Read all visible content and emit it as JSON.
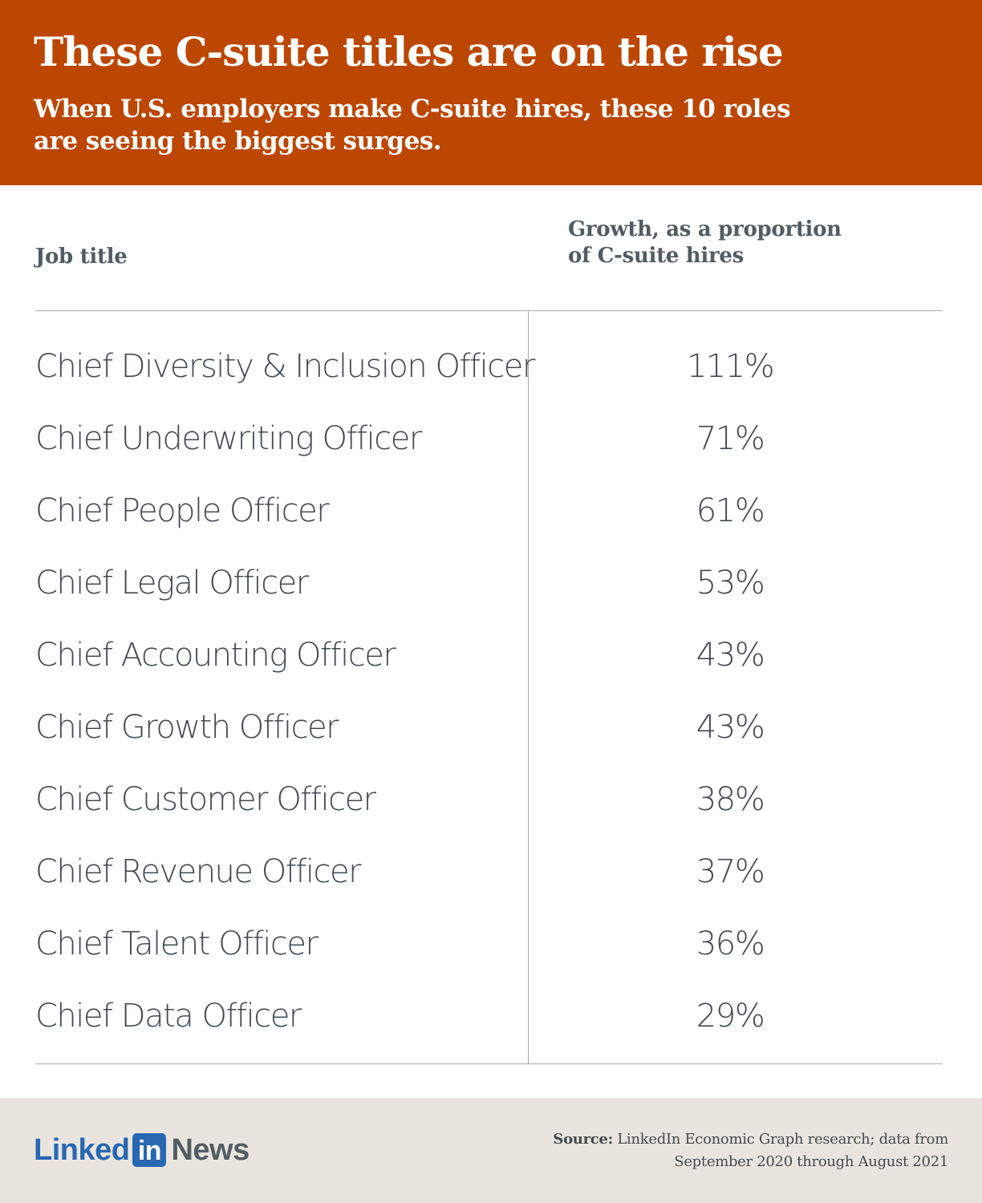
{
  "header": {
    "title": "These C-suite titles are on the rise",
    "subtitle": "When U.S. employers make C-suite hires, these 10 roles are seeing the biggest surges."
  },
  "columns": {
    "job_title": "Job title",
    "growth_line1": "Growth, as a proportion",
    "growth_line2": "of C-suite hires"
  },
  "chart_data": {
    "type": "table",
    "title": "These C-suite titles are on the rise",
    "subtitle": "When U.S. employers make C-suite hires, these 10 roles are seeing the biggest surges.",
    "columns": [
      "Job title",
      "Growth, as a proportion of C-suite hires"
    ],
    "categories": [
      "Chief Diversity & Inclusion Officer",
      "Chief Underwriting Officer",
      "Chief People Officer",
      "Chief Legal Officer",
      "Chief Accounting Officer",
      "Chief Growth Officer",
      "Chief Customer Officer",
      "Chief Revenue Officer",
      "Chief Talent Officer",
      "Chief Data Officer"
    ],
    "values": [
      111,
      71,
      61,
      53,
      43,
      43,
      38,
      37,
      36,
      29
    ],
    "value_suffix": "%"
  },
  "footer": {
    "logo_linked": "Linked",
    "logo_in": "in",
    "logo_news": "News",
    "source_label": "Source:",
    "source_line1": "LinkedIn Economic Graph research; data from",
    "source_line2": "September 2020 through August 2021"
  },
  "colors": {
    "header_bg": "#bc4702",
    "footer_bg": "#e9e5de",
    "text": "#434a4f",
    "brand_blue": "#2867b2"
  }
}
